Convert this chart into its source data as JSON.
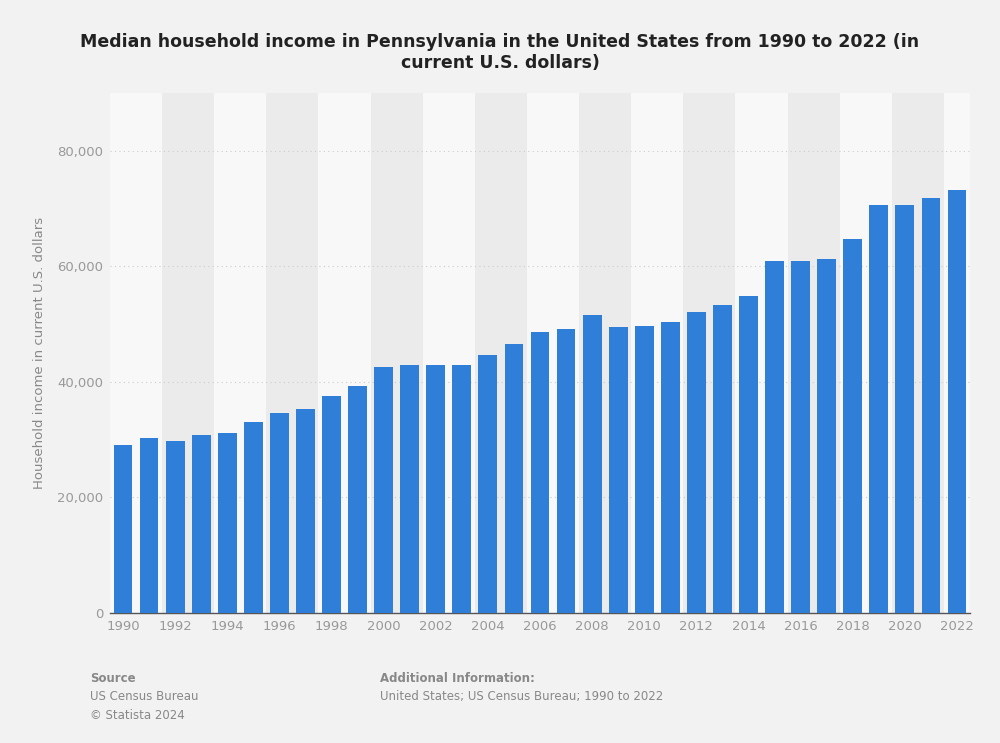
{
  "title": "Median household income in Pennsylvania in the United States from 1990 to 2022 (in\ncurrent U.S. dollars)",
  "ylabel": "Household income in current U.S. dollars",
  "years": [
    1990,
    1991,
    1992,
    1993,
    1994,
    1995,
    1996,
    1997,
    1998,
    1999,
    2000,
    2001,
    2002,
    2003,
    2004,
    2005,
    2006,
    2007,
    2008,
    2009,
    2010,
    2011,
    2012,
    2013,
    2014,
    2015,
    2016,
    2017,
    2018,
    2019,
    2020,
    2021,
    2022
  ],
  "values": [
    29069,
    30195,
    29682,
    30845,
    31181,
    33121,
    34555,
    35217,
    37524,
    39310,
    42538,
    42966,
    42907,
    42893,
    44721,
    46499,
    48576,
    49133,
    51617,
    49520,
    49728,
    50405,
    52007,
    53234,
    54895,
    60828,
    60905,
    61336,
    64740,
    70511,
    70523,
    71797,
    73170
  ],
  "bar_color": "#2f7ed8",
  "outer_bg": "#f2f2f2",
  "plot_bg_light": "#f8f8f8",
  "plot_bg_dark": "#ebebeb",
  "ylim": [
    0,
    90000
  ],
  "yticks": [
    0,
    20000,
    40000,
    60000,
    80000
  ],
  "grid_color": "#cccccc",
  "source_label": "Source",
  "source_body": "US Census Bureau\n© Statista 2024",
  "additional_label": "Additional Information:",
  "additional_body": "United States; US Census Bureau; 1990 to 2022",
  "tick_color": "#999999",
  "title_color": "#222222",
  "ylabel_color": "#888888",
  "footer_color": "#888888"
}
